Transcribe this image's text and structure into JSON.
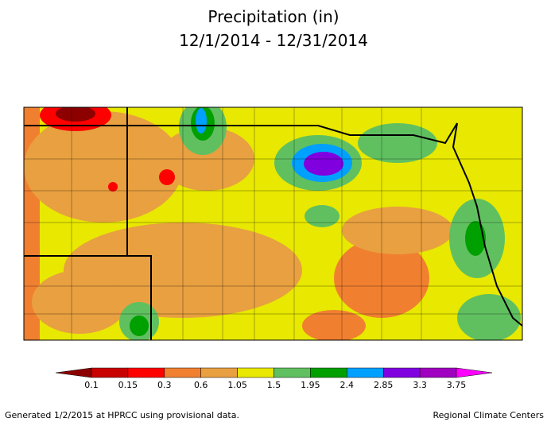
{
  "header": {
    "title": "Precipitation (in)",
    "period": "12/1/2014 - 12/31/2014"
  },
  "legend": {
    "colors": [
      "#8c0000",
      "#c80000",
      "#ff0000",
      "#f08030",
      "#e8a040",
      "#e8e800",
      "#60c060",
      "#00a000",
      "#00a0ff",
      "#8000e0",
      "#a000c0",
      "#ff00ff"
    ],
    "labels": [
      "0.1",
      "0.15",
      "0.3",
      "0.6",
      "1.05",
      "1.5",
      "1.95",
      "2.4",
      "2.85",
      "3.3",
      "3.75"
    ]
  },
  "footer": {
    "left": "Generated 1/2/2015 at HPRCC using provisional data.",
    "right": "Regional Climate Centers"
  }
}
